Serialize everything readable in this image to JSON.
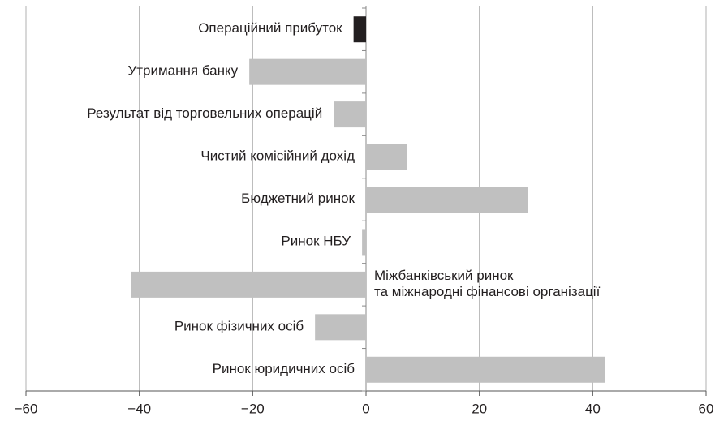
{
  "chart_data": {
    "type": "hbar",
    "categories": [
      "Операційний прибуток",
      "Утримання банку",
      "Результат від торговельних операцій",
      "Чистий комісійний дохід",
      "Бюджетний ринок",
      "Ринок НБУ",
      "Міжбанківський ринок\nта міжнародні фінансові організації",
      "Ринок фізичних осіб",
      "Ринок юридичних осіб"
    ],
    "values": [
      -2.2,
      -20.6,
      -5.7,
      7.2,
      28.5,
      -0.7,
      -41.5,
      -9,
      42.1
    ],
    "colors": [
      "#231f20",
      "#c0c0c0",
      "#c0c0c0",
      "#c0c0c0",
      "#c0c0c0",
      "#c0c0c0",
      "#c0c0c0",
      "#c0c0c0",
      "#c0c0c0"
    ],
    "xlim": [
      -60,
      60
    ],
    "xticks": [
      {
        "value": -60,
        "label": "−60"
      },
      {
        "value": -40,
        "label": "−40"
      },
      {
        "value": -20,
        "label": "−20"
      },
      0,
      20,
      40,
      60
    ],
    "grid": true
  }
}
